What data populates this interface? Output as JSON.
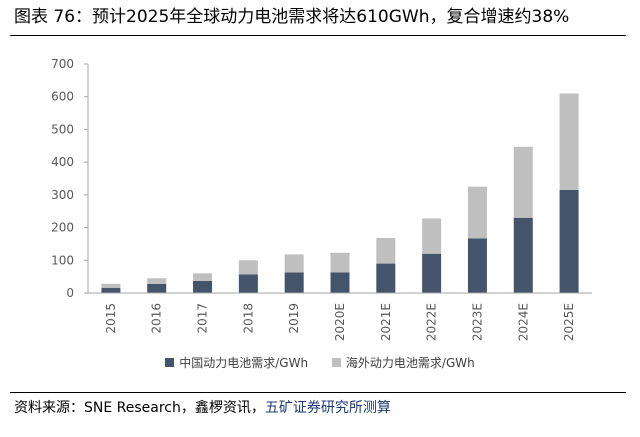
{
  "title": "图表 76：预计2025年全球动力电池需求将达610GWh，复合增速约38%",
  "source": {
    "prefix": "资料来源：SNE Research，鑫椤资讯，",
    "highlight": "五矿证券研究所测算"
  },
  "colors": {
    "china": "#44546a",
    "overseas": "#bfbfbf",
    "axis": "#a6a6a6",
    "tick_text": "#595959"
  },
  "chart_data": {
    "type": "bar",
    "stacked": true,
    "categories": [
      "2015",
      "2016",
      "2017",
      "2018",
      "2019",
      "2020E",
      "2021E",
      "2022E",
      "2023E",
      "2024E",
      "2025E"
    ],
    "series": [
      {
        "name": "中国动力电池需求/GWh",
        "values": [
          16,
          28,
          37,
          57,
          63,
          63,
          90,
          120,
          167,
          230,
          315
        ]
      },
      {
        "name": "海外动力电池需求/GWh",
        "values": [
          12,
          17,
          23,
          43,
          55,
          60,
          78,
          108,
          158,
          217,
          295
        ]
      }
    ],
    "ylim": [
      0,
      700
    ],
    "yticks": [
      0,
      100,
      200,
      300,
      400,
      500,
      600,
      700
    ],
    "legend_position": "bottom",
    "grid": false
  }
}
